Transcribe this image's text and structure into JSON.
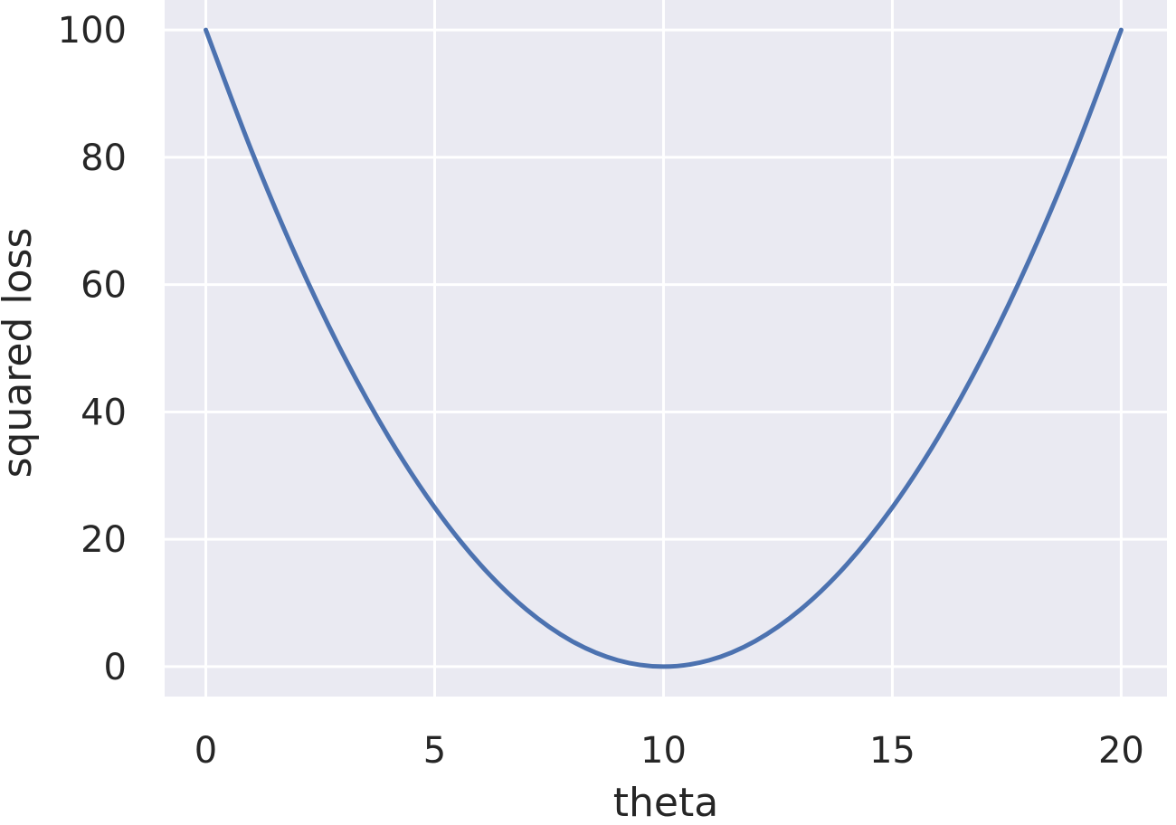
{
  "colors": {
    "plot_background": "#eaeaf2",
    "grid": "#ffffff",
    "line": "#4c72b0",
    "text": "#262626"
  },
  "chart_data": {
    "type": "line",
    "title": "",
    "xlabel": "theta",
    "ylabel": "squared loss",
    "xlim": [
      -0.9,
      21.0
    ],
    "ylim": [
      -4.7,
      104.7
    ],
    "xticks": [
      0,
      5,
      10,
      15,
      20
    ],
    "yticks": [
      0,
      20,
      40,
      60,
      80,
      100
    ],
    "grid": true,
    "legend": "none",
    "series": [
      {
        "x": [
          0,
          1,
          2,
          3,
          4,
          5,
          6,
          7,
          8,
          9,
          10,
          11,
          12,
          13,
          14,
          15,
          16,
          17,
          18,
          19,
          20
        ],
        "y": [
          100,
          81,
          64,
          49,
          36,
          25,
          16,
          9,
          4,
          1,
          0,
          1,
          4,
          9,
          16,
          25,
          36,
          49,
          64,
          81,
          100
        ]
      }
    ]
  }
}
